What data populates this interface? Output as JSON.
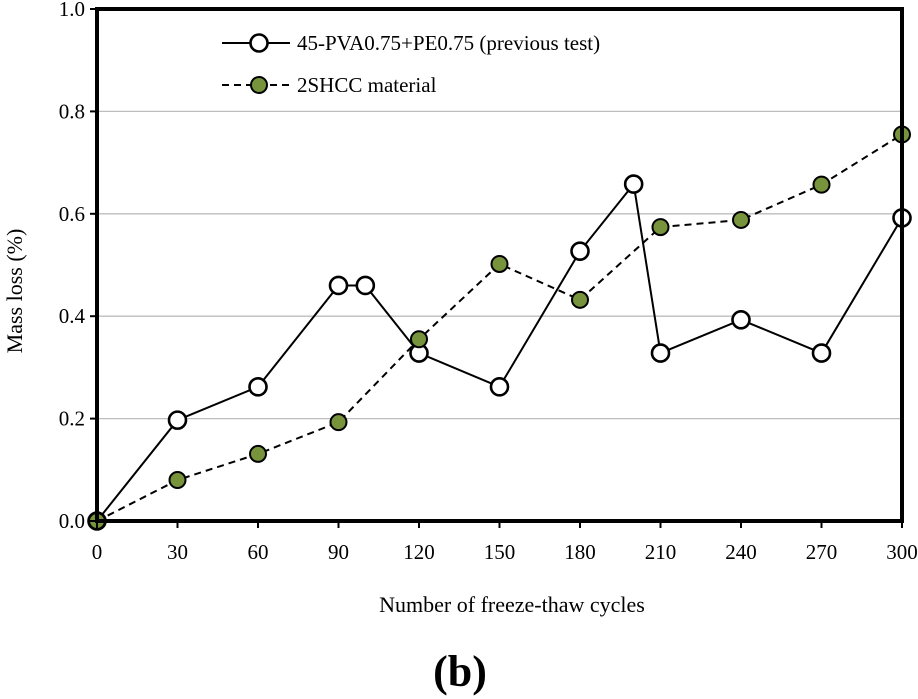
{
  "chart_data": {
    "type": "line",
    "title": "",
    "xlabel": "Number  of  freeze-thaw  cycles",
    "ylabel": "Mass loss (%)",
    "panel_label": "(b)",
    "xlim": [
      0,
      300
    ],
    "ylim": [
      0,
      1.0
    ],
    "x_ticks": [
      "0",
      "30",
      "60",
      "90",
      "120",
      "150",
      "180",
      "210",
      "240",
      "270",
      "300"
    ],
    "y_ticks": [
      "0.0",
      "0.2",
      "0.4",
      "0.6",
      "0.8",
      "1.0"
    ],
    "grid": "horizontal",
    "legend_position": "top",
    "series": [
      {
        "name": "45-PVA0.75+PE0.75 (previous test)",
        "line_style": "solid",
        "marker": "open-circle",
        "x": [
          0,
          30,
          60,
          90,
          100,
          120,
          150,
          180,
          200,
          210,
          240,
          270,
          300
        ],
        "values": [
          0.0,
          0.197,
          0.262,
          0.46,
          0.46,
          0.328,
          0.262,
          0.527,
          0.658,
          0.328,
          0.393,
          0.328,
          0.592
        ]
      },
      {
        "name": "2SHCC material",
        "line_style": "dashed",
        "marker": "filled-circle",
        "marker_color": "#77933C",
        "x": [
          0,
          30,
          60,
          90,
          120,
          150,
          180,
          210,
          240,
          270,
          300
        ],
        "values": [
          0.0,
          0.08,
          0.131,
          0.193,
          0.355,
          0.502,
          0.432,
          0.574,
          0.588,
          0.657,
          0.755
        ]
      }
    ]
  }
}
